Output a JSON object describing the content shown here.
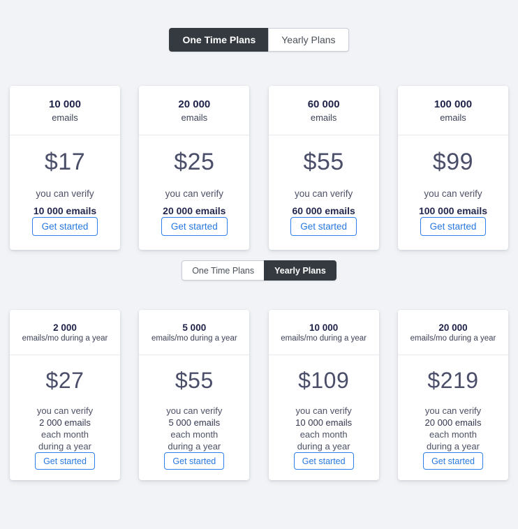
{
  "toggle_top": {
    "options": [
      {
        "label": "One Time Plans",
        "active": true
      },
      {
        "label": "Yearly Plans",
        "active": false
      }
    ]
  },
  "toggle_bottom": {
    "options": [
      {
        "label": "One Time Plans",
        "active": false
      },
      {
        "label": "Yearly Plans",
        "active": true
      }
    ]
  },
  "one_time_plans": [
    {
      "quantity": "10 000",
      "unit": "emails",
      "price": "$17",
      "lines": [
        "you can verify",
        "10 000 emails"
      ],
      "button_label": "Get started"
    },
    {
      "quantity": "20 000",
      "unit": "emails",
      "price": "$25",
      "lines": [
        "you can verify",
        "20 000 emails"
      ],
      "button_label": "Get started"
    },
    {
      "quantity": "60 000",
      "unit": "emails",
      "price": "$55",
      "lines": [
        "you can verify",
        "60 000 emails"
      ],
      "button_label": "Get started"
    },
    {
      "quantity": "100 000",
      "unit": "emails",
      "price": "$99",
      "lines": [
        "you can verify",
        "100 000 emails"
      ],
      "button_label": "Get started"
    }
  ],
  "yearly_plans": [
    {
      "quantity": "2 000",
      "unit": "emails/mo during a year",
      "price": "$27",
      "lines": [
        "you can verify",
        "2 000 emails",
        "each month",
        "during a year"
      ],
      "button_label": "Get started"
    },
    {
      "quantity": "5 000",
      "unit": "emails/mo during a year",
      "price": "$55",
      "lines": [
        "you can verify",
        "5 000 emails",
        "each month",
        "during a year"
      ],
      "button_label": "Get started"
    },
    {
      "quantity": "10 000",
      "unit": "emails/mo during a year",
      "price": "$109",
      "lines": [
        "you can verify",
        "10 000 emails",
        "each month",
        "during a year"
      ],
      "button_label": "Get started"
    },
    {
      "quantity": "20 000",
      "unit": "emails/mo during a year",
      "price": "$219",
      "lines": [
        "you can verify",
        "20 000 emails",
        "each month",
        "during a year"
      ],
      "button_label": "Get started"
    }
  ],
  "colors": {
    "page_bg": "#f1f3f6",
    "card_bg": "#ffffff",
    "dark_segment": "#343a40",
    "accent_blue": "#2f80ed",
    "heading_navy": "#1e2248",
    "price_text": "#4a4e68"
  }
}
